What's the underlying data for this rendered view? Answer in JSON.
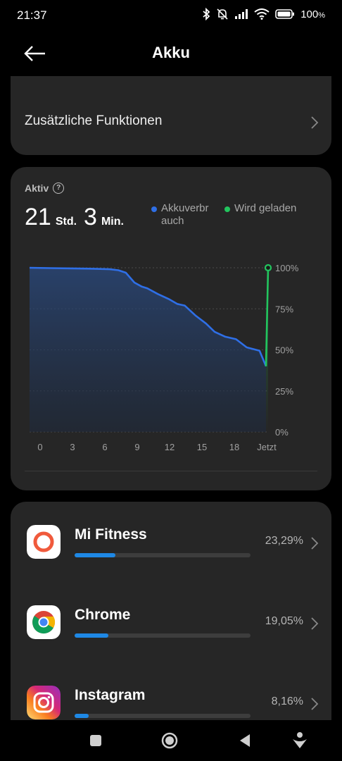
{
  "status_bar": {
    "time": "21:37",
    "battery_percent": "100"
  },
  "app_bar": {
    "title": "Akku"
  },
  "functions": {
    "label": "Zusätzliche Funktionen"
  },
  "usage": {
    "active_label": "Aktiv",
    "hours": "21",
    "hours_unit": "Std.",
    "minutes": "3",
    "minutes_unit": "Min.",
    "legend": [
      {
        "label": "Akkuverbrauch",
        "line1": "Akkuverbr",
        "line2": "auch",
        "color": "#2f6fe6"
      },
      {
        "label": "Wird geladen",
        "line1": "Wird geladen",
        "line2": "",
        "color": "#22c55e"
      }
    ]
  },
  "chart_data": {
    "type": "area",
    "x_tick_labels": [
      "0",
      "3",
      "6",
      "9",
      "12",
      "15",
      "18",
      "Jetzt"
    ],
    "y_tick_labels": [
      "100%",
      "75%",
      "50%",
      "25%",
      "0%"
    ],
    "ylim": [
      0,
      100
    ],
    "xlim": [
      0,
      22.3
    ],
    "grid": true,
    "series": [
      {
        "name": "Akkuverbrauch",
        "color": "#2f6fe6",
        "x": [
          0,
          2,
          4,
          6,
          7.5,
          8.3,
          9,
          9.8,
          10.5,
          11,
          12,
          13,
          13.8,
          14.5,
          15.5,
          16.5,
          17.3,
          18.3,
          19.3,
          20.3,
          21.5,
          22.1
        ],
        "y": [
          100,
          99.8,
          99.6,
          99.4,
          99.1,
          98.5,
          97,
          91,
          88.5,
          87.5,
          84,
          81,
          78,
          77,
          71,
          66,
          61,
          58,
          56.5,
          51.5,
          49.5,
          40
        ]
      },
      {
        "name": "Wird geladen",
        "color": "#22c55e",
        "x": [
          22.1,
          22.3
        ],
        "y": [
          40,
          100
        ]
      }
    ]
  },
  "apps": [
    {
      "name": "Mi Fitness",
      "percent_label": "23,29%",
      "bar_fraction": 0.23,
      "icon": "mi-fitness-icon"
    },
    {
      "name": "Chrome",
      "percent_label": "19,05%",
      "bar_fraction": 0.19,
      "icon": "chrome-icon"
    },
    {
      "name": "Instagram",
      "percent_label": "8,16%",
      "bar_fraction": 0.08,
      "icon": "instagram-icon"
    }
  ]
}
